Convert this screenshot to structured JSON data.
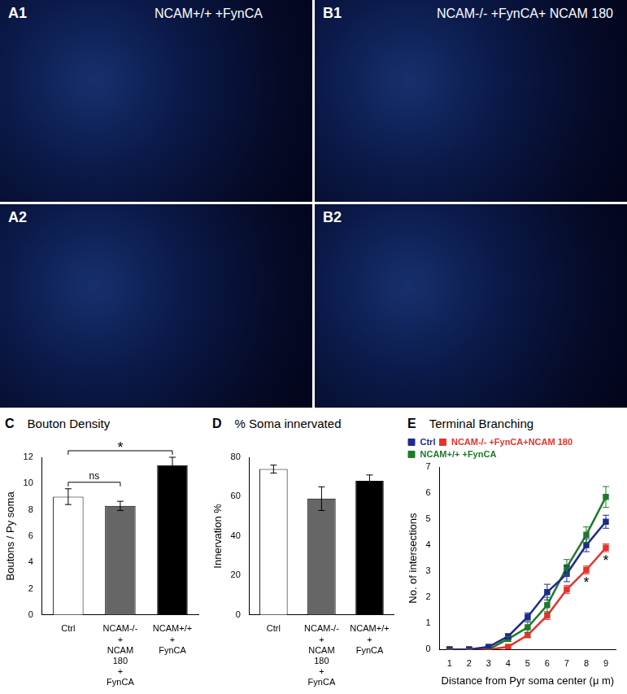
{
  "panels": [
    {
      "label": "A1",
      "caption": "NCAM+/+ +FynCA"
    },
    {
      "label": "B1",
      "caption": "NCAM-/- +FynCA+ NCAM 180"
    },
    {
      "label": "A2"
    },
    {
      "label": "B2"
    }
  ],
  "chart_data": [
    {
      "type": "bar",
      "panel": "C",
      "title": "Bouton Density",
      "categories": [
        "Ctrl",
        [
          "NCAM-/-",
          "+",
          "NCAM",
          "180",
          "+",
          "FynCA"
        ],
        [
          "NCAM+/+",
          "+",
          "FynCA"
        ]
      ],
      "values": [
        9.0,
        8.3,
        11.4
      ],
      "errors": [
        0.6,
        0.35,
        0.6
      ],
      "colors": [
        "#ffffff",
        "#666666",
        "#000000"
      ],
      "ylabel": "Boutons / Py soma",
      "ylim": [
        0,
        12
      ],
      "yticks": [
        0,
        2,
        4,
        6,
        8,
        10,
        12
      ],
      "grid": false,
      "brackets": [
        {
          "from": 0,
          "to": 1,
          "label": "ns"
        },
        {
          "from": 0,
          "to": 2,
          "label": "*"
        }
      ]
    },
    {
      "type": "bar",
      "panel": "D",
      "title": "% Soma innervated",
      "categories": [
        "Ctrl",
        [
          "NCAM-/-",
          "+",
          "NCAM",
          "180",
          "+",
          "FynCA"
        ],
        [
          "NCAM+/+",
          "+",
          "FynCA"
        ]
      ],
      "values": [
        74,
        59,
        68
      ],
      "errors": [
        2,
        6,
        3
      ],
      "colors": [
        "#ffffff",
        "#666666",
        "#000000"
      ],
      "ylabel": "Innervation %",
      "ylim": [
        0,
        80
      ],
      "yticks": [
        0,
        20,
        40,
        60,
        80
      ],
      "grid": false
    },
    {
      "type": "line",
      "panel": "E",
      "title": "Terminal Branching",
      "x": [
        1,
        2,
        3,
        4,
        5,
        6,
        7,
        8,
        9
      ],
      "series": [
        {
          "name": "Ctrl",
          "color": "#1f2a8c",
          "marker": "square",
          "values": [
            0,
            0,
            0.1,
            0.5,
            1.25,
            2.2,
            2.9,
            4.0,
            4.9
          ],
          "errors": [
            0,
            0,
            0.05,
            0.1,
            0.15,
            0.3,
            0.3,
            0.25,
            0.25
          ]
        },
        {
          "name": "NCAM-/- +FynCA+NCAM 180",
          "color": "#e8312a",
          "marker": "square",
          "values": [
            0,
            0,
            0,
            0.1,
            0.55,
            1.3,
            2.3,
            3.05,
            3.9
          ],
          "errors": [
            0,
            0,
            0,
            0.05,
            0.1,
            0.15,
            0.15,
            0.15,
            0.15
          ]
        },
        {
          "name": "NCAM+/+ +FynCA",
          "color": "#1f7a2a",
          "marker": "square",
          "values": [
            0,
            0,
            0,
            0.4,
            0.85,
            1.7,
            3.15,
            4.4,
            5.85
          ],
          "errors": [
            0,
            0,
            0,
            0.1,
            0.2,
            0.3,
            0.3,
            0.3,
            0.4
          ]
        }
      ],
      "xlabel": "Distance from Pyr soma center (μ m)",
      "ylabel": "No. of intersections",
      "xlim": [
        0.5,
        9.5
      ],
      "xticks": [
        1,
        2,
        3,
        4,
        5,
        6,
        7,
        8,
        9
      ],
      "ylim": [
        0,
        7
      ],
      "yticks": [
        0,
        1,
        2,
        3,
        4,
        5,
        6,
        7
      ],
      "grid": false,
      "legend": "upper left",
      "annotations": [
        {
          "text": "*",
          "series": "NCAM-/- +FynCA+NCAM 180",
          "x": 8
        },
        {
          "text": "*",
          "series": "NCAM-/- +FynCA+NCAM 180",
          "x": 9
        }
      ]
    }
  ]
}
